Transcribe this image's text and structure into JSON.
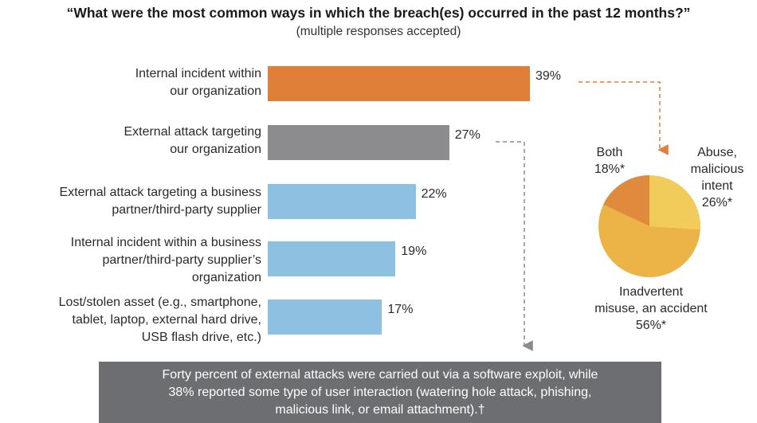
{
  "header": {
    "title": "“What were the most common ways in which the breach(es) occurred in the past 12 months?”",
    "subtitle": "(multiple responses accepted)"
  },
  "chart_data": [
    {
      "type": "bar",
      "orientation": "horizontal",
      "categories": [
        [
          "Internal incident within",
          "our organization"
        ],
        [
          "External attack targeting",
          "our organization"
        ],
        [
          "External attack targeting a business",
          "partner/third-party supplier"
        ],
        [
          "Internal incident within a business",
          "partner/third-party supplier’s",
          "organization"
        ],
        [
          "Lost/stolen asset (e.g., smartphone,",
          "tablet, laptop, external hard drive,",
          "USB flash drive, etc.)"
        ]
      ],
      "values": [
        39,
        27,
        22,
        19,
        17
      ],
      "value_labels": [
        "39%",
        "27%",
        "22%",
        "19%",
        "17%"
      ],
      "colors": [
        "#e07f3a",
        "#8c8c8e",
        "#8ec0e2",
        "#8ec0e2",
        "#8ec0e2"
      ],
      "xlim": [
        0,
        39
      ]
    },
    {
      "type": "pie",
      "slices": [
        {
          "label": [
            "Abuse,",
            "malicious",
            "intent",
            "26%*"
          ],
          "value": 26,
          "color": "#f2cc5a"
        },
        {
          "label": [
            "Inadvertent",
            "misuse, an accident",
            "56%*"
          ],
          "value": 56,
          "color": "#ecb447"
        },
        {
          "label": [
            "Both",
            "18%*"
          ],
          "value": 18,
          "color": "#df8a3c"
        }
      ]
    }
  ],
  "footer": {
    "lines": [
      "Forty percent of external attacks were carried out via a software exploit, while",
      "38% reported some type of user interaction (watering hole attack, phishing,",
      "malicious link, or email attachment).†"
    ]
  }
}
